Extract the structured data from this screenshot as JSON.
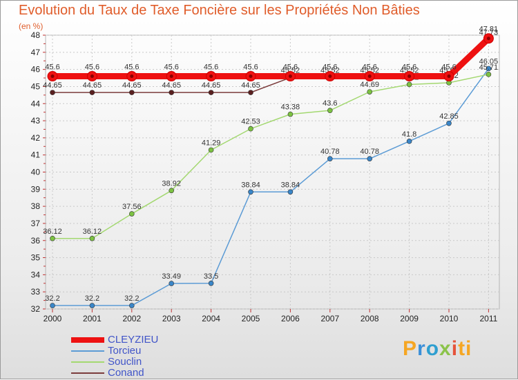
{
  "chart_data": {
    "type": "line",
    "title": "Evolution du Taux de Taxe Foncière sur les Propriétés Non Bâties",
    "subtitle": "(en %)",
    "x": [
      "2000",
      "2001",
      "2002",
      "2003",
      "2004",
      "2005",
      "2006",
      "2007",
      "2008",
      "2009",
      "2010",
      "2011"
    ],
    "ylim": [
      32,
      48
    ],
    "yticks": [
      32,
      33,
      34,
      35,
      36,
      37,
      38,
      39,
      40,
      41,
      42,
      43,
      44,
      45,
      46,
      47,
      48
    ],
    "series": [
      {
        "name": "Torcieu",
        "color": "#5b9bd5",
        "marker": "#3a86c8",
        "values": [
          32.2,
          32.2,
          32.2,
          33.49,
          33.5,
          38.84,
          38.84,
          40.78,
          40.78,
          41.8,
          42.85,
          46.05
        ],
        "labels": [
          "32.2",
          "32.2",
          "32.2",
          "33.49",
          "33.5",
          "38.84",
          "38.84",
          "40.78",
          "40.78",
          "41.8",
          "42.85",
          "46.05"
        ]
      },
      {
        "name": "Souclin",
        "color": "#a3d870",
        "marker": "#7cc242",
        "values": [
          36.12,
          36.12,
          37.56,
          38.92,
          41.29,
          42.53,
          43.38,
          43.6,
          44.69,
          45.12,
          45.22,
          45.71
        ],
        "labels": [
          "36.12",
          "36.12",
          "37.56",
          "38.92",
          "41.29",
          "42.53",
          "43.38",
          "43.6",
          "44.69",
          "45.12",
          "45.22",
          "45.71"
        ]
      },
      {
        "name": "Conand",
        "color": "#7b3b3b",
        "marker": "#5a2020",
        "values": [
          44.65,
          44.65,
          44.65,
          44.65,
          44.65,
          44.65,
          45.52,
          45.52,
          45.52,
          45.52,
          45.52,
          47.73
        ],
        "labels": [
          "44.65",
          "44.65",
          "44.65",
          "44.65",
          "44.65",
          "44.65",
          "45.52",
          "45.52",
          "45.52",
          "45.52",
          "45.52",
          "47.73"
        ]
      },
      {
        "name": "CLEYZIEU",
        "color": "#ee1111",
        "marker": "#ee1111",
        "values": [
          45.6,
          45.6,
          45.6,
          45.6,
          45.6,
          45.6,
          45.6,
          45.6,
          45.6,
          45.6,
          45.6,
          47.81
        ],
        "labels": [
          "45.6",
          "45.6",
          "45.6",
          "45.6",
          "45.6",
          "45.6",
          "45.6",
          "45.6",
          "45.6",
          "45.6",
          "45.6",
          "47.81"
        ]
      }
    ]
  },
  "legend": {
    "items": [
      {
        "name": "CLEYZIEU",
        "color": "#ee1111"
      },
      {
        "name": "Torcieu",
        "color": "#5b9bd5"
      },
      {
        "name": "Souclin",
        "color": "#a3d870"
      },
      {
        "name": "Conand",
        "color": "#7b3b3b"
      }
    ]
  },
  "brand": {
    "name": "Proxiti",
    "letters": [
      "P",
      "r",
      "o",
      "x",
      "i",
      "ti"
    ]
  }
}
